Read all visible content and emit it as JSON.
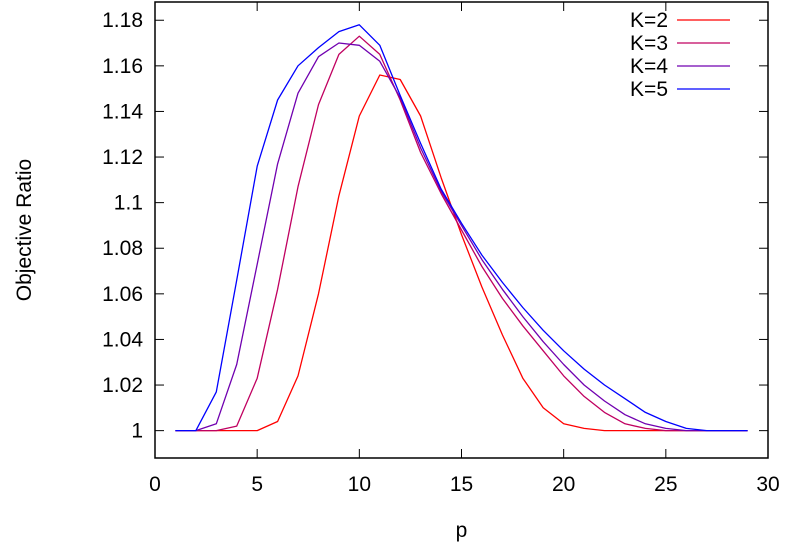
{
  "chart_data": {
    "type": "line",
    "xlabel": "p",
    "ylabel": "Objective Ratio",
    "xlim": [
      0,
      30
    ],
    "ylim": [
      0.988,
      1.188
    ],
    "xticks": [
      0,
      5,
      10,
      15,
      20,
      25,
      30
    ],
    "xtick_labels": [
      "0",
      "5",
      "10",
      "15",
      "20",
      "25",
      "30"
    ],
    "yticks": [
      1,
      1.02,
      1.04,
      1.06,
      1.08,
      1.1,
      1.12,
      1.14,
      1.16,
      1.18
    ],
    "ytick_labels": [
      "1",
      "1.02",
      "1.04",
      "1.06",
      "1.08",
      "1.1",
      "1.12",
      "1.14",
      "1.16",
      "1.18"
    ],
    "grid": false,
    "legend_position": "top-right",
    "series": [
      {
        "name": "K=2",
        "color": "#ff0000",
        "x": [
          1,
          2,
          3,
          4,
          5,
          6,
          7,
          8,
          9,
          10,
          11,
          12,
          13,
          14,
          15,
          16,
          17,
          18,
          19,
          20,
          21,
          22,
          23,
          24,
          25,
          26,
          27,
          28,
          29
        ],
        "y": [
          1.0,
          1.0,
          1.0,
          1.0,
          1.0,
          1.004,
          1.024,
          1.06,
          1.103,
          1.138,
          1.156,
          1.154,
          1.138,
          1.111,
          1.086,
          1.063,
          1.042,
          1.023,
          1.01,
          1.003,
          1.001,
          1.0,
          1.0,
          1.0,
          1.0,
          1.0,
          1.0,
          1.0,
          1.0
        ]
      },
      {
        "name": "K=3",
        "color": "#c00060",
        "x": [
          1,
          2,
          3,
          4,
          5,
          6,
          7,
          8,
          9,
          10,
          11,
          12,
          13,
          14,
          15,
          16,
          17,
          18,
          19,
          20,
          21,
          22,
          23,
          24,
          25,
          26,
          27,
          28,
          29
        ],
        "y": [
          1.0,
          1.0,
          1.0,
          1.002,
          1.023,
          1.062,
          1.107,
          1.143,
          1.165,
          1.173,
          1.165,
          1.145,
          1.122,
          1.104,
          1.088,
          1.072,
          1.058,
          1.046,
          1.035,
          1.024,
          1.015,
          1.008,
          1.003,
          1.001,
          1.0,
          1.0,
          1.0,
          1.0,
          1.0
        ]
      },
      {
        "name": "K=4",
        "color": "#7000b0",
        "x": [
          1,
          2,
          3,
          4,
          5,
          6,
          7,
          8,
          9,
          10,
          11,
          12,
          13,
          14,
          15,
          16,
          17,
          18,
          19,
          20,
          21,
          22,
          23,
          24,
          25,
          26,
          27,
          28,
          29
        ],
        "y": [
          1.0,
          1.0,
          1.003,
          1.029,
          1.073,
          1.117,
          1.148,
          1.164,
          1.17,
          1.169,
          1.162,
          1.146,
          1.124,
          1.105,
          1.09,
          1.075,
          1.062,
          1.05,
          1.039,
          1.029,
          1.02,
          1.013,
          1.007,
          1.003,
          1.001,
          1.0,
          1.0,
          1.0,
          1.0
        ]
      },
      {
        "name": "K=5",
        "color": "#0000ff",
        "x": [
          1,
          2,
          3,
          4,
          5,
          6,
          7,
          8,
          9,
          10,
          11,
          12,
          13,
          14,
          15,
          16,
          17,
          18,
          19,
          20,
          21,
          22,
          23,
          24,
          25,
          26,
          27,
          28,
          29
        ],
        "y": [
          1.0,
          1.0,
          1.017,
          1.066,
          1.116,
          1.145,
          1.16,
          1.168,
          1.175,
          1.178,
          1.169,
          1.147,
          1.126,
          1.106,
          1.091,
          1.077,
          1.065,
          1.054,
          1.044,
          1.035,
          1.027,
          1.02,
          1.014,
          1.008,
          1.004,
          1.001,
          1.0,
          1.0,
          1.0
        ]
      }
    ]
  }
}
